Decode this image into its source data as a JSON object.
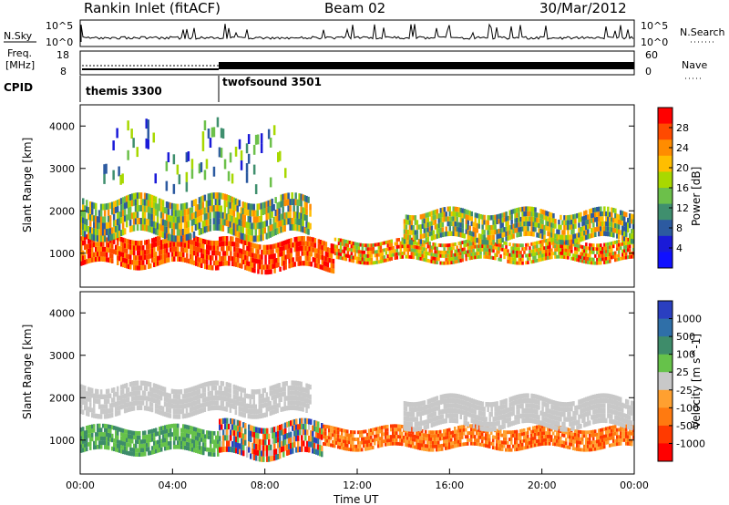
{
  "header": {
    "station": "Rankin Inlet (fitACF)",
    "beam": "Beam 02",
    "date": "30/Mar/2012"
  },
  "top_panels": {
    "nsky_label": "N.Sky",
    "nsearch_label": "N.Search",
    "nsky_ticks": [
      "10^5",
      "10^0"
    ],
    "nsearch_ticks": [
      "10^5",
      "10^0"
    ],
    "freq_label_1": "Freq.",
    "freq_label_2": "[MHz]",
    "freq_ticks": [
      "18",
      "8"
    ],
    "nave_label": "Nave",
    "nave_ticks": [
      "60",
      "0"
    ],
    "cpid_label": "CPID",
    "cpid_modes": [
      {
        "name": "themis 3300",
        "start_hour": 0
      },
      {
        "name": "twofsound 3501",
        "start_hour": 6
      }
    ]
  },
  "chart_data": [
    {
      "type": "heatmap",
      "title": "",
      "xlabel": "",
      "ylabel": "Slant Range [km]",
      "xlim": [
        0,
        24
      ],
      "ylim": [
        200,
        4500
      ],
      "yticks": [
        "1000",
        "2000",
        "3000",
        "4000"
      ],
      "colorbar": {
        "label": "Power [dB]",
        "ticks": [
          "28",
          "24",
          "20",
          "16",
          "12",
          "8",
          "4"
        ],
        "colors": [
          "#ff0000",
          "#ff4a00",
          "#ff8c00",
          "#ffbe00",
          "#a8d800",
          "#6cc04a",
          "#3f8f6e",
          "#2c5aa0",
          "#1a1ad8",
          "#1010ff"
        ]
      },
      "bands": [
        {
          "t0": 0.0,
          "t1": 6.0,
          "r0": 700,
          "r1": 1400,
          "level": "high"
        },
        {
          "t0": 6.0,
          "t1": 11.0,
          "r0": 600,
          "r1": 1300,
          "level": "high"
        },
        {
          "t0": 11.0,
          "t1": 24.0,
          "r0": 800,
          "r1": 1300,
          "level": "mid-high"
        },
        {
          "t0": 0.0,
          "t1": 10.0,
          "r0": 1400,
          "r1": 2300,
          "level": "mid"
        },
        {
          "t0": 14.0,
          "t1": 24.0,
          "r0": 1300,
          "r1": 2000,
          "level": "mid"
        },
        {
          "t0": 1.0,
          "t1": 9.0,
          "r0": 2600,
          "r1": 4000,
          "level": "sparse"
        }
      ]
    },
    {
      "type": "heatmap",
      "title": "",
      "xlabel": "Time UT",
      "ylabel": "Slant Range [km]",
      "xlim": [
        0,
        24
      ],
      "ylim": [
        200,
        4500
      ],
      "xticks": [
        "00:00",
        "04:00",
        "08:00",
        "12:00",
        "16:00",
        "20:00",
        "00:00"
      ],
      "yticks": [
        "1000",
        "2000",
        "3000",
        "4000"
      ],
      "colorbar": {
        "label": "Velocity [m s^-1]",
        "ticks": [
          "1000",
          "500",
          "100",
          "25",
          "-25",
          "-100",
          "-500",
          "-1000"
        ],
        "colors": [
          "#2a3fc0",
          "#2f6fa8",
          "#3e8c6a",
          "#66c24a",
          "#c8c8c8",
          "#ffa030",
          "#ff7a10",
          "#ff3a00",
          "#ff0000"
        ]
      },
      "bands": [
        {
          "t0": 0.0,
          "t1": 6.0,
          "r0": 700,
          "r1": 1300,
          "level": "green"
        },
        {
          "t0": 6.0,
          "t1": 10.5,
          "r0": 600,
          "r1": 1400,
          "level": "mixed"
        },
        {
          "t0": 10.5,
          "t1": 24.0,
          "r0": 800,
          "r1": 1300,
          "level": "orange"
        },
        {
          "t0": 0.0,
          "t1": 10.0,
          "r0": 1600,
          "r1": 2300,
          "level": "grey"
        },
        {
          "t0": 14.0,
          "t1": 24.0,
          "r0": 1300,
          "r1": 2000,
          "level": "grey"
        }
      ]
    }
  ]
}
